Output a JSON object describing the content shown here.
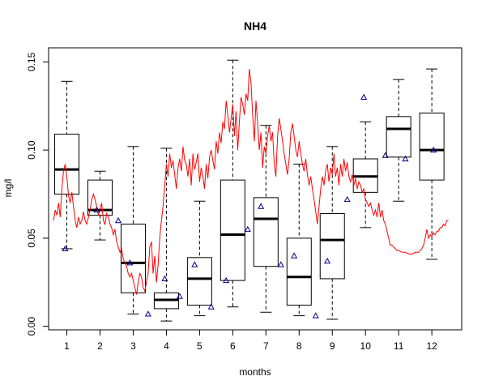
{
  "chart_data": {
    "type": "boxplot",
    "title": "NH4",
    "xlabel": "months",
    "ylabel": "mg/l",
    "ylim": [
      -0.002,
      0.158
    ],
    "y_ticks": [
      0.0,
      0.05,
      0.1,
      0.15
    ],
    "y_tick_labels": [
      "0.00",
      "0.05",
      "0.10",
      "0.15"
    ],
    "categories": [
      "1",
      "2",
      "3",
      "4",
      "5",
      "6",
      "7",
      "8",
      "9",
      "10",
      "11",
      "12"
    ],
    "boxes": [
      {
        "month": "1",
        "whisker_low": 0.044,
        "q1": 0.075,
        "median": 0.089,
        "q3": 0.109,
        "whisker_high": 0.139
      },
      {
        "month": "2",
        "whisker_low": 0.049,
        "q1": 0.063,
        "median": 0.066,
        "q3": 0.083,
        "whisker_high": 0.088
      },
      {
        "month": "3",
        "whisker_low": 0.007,
        "q1": 0.019,
        "median": 0.036,
        "q3": 0.058,
        "whisker_high": 0.102
      },
      {
        "month": "4",
        "whisker_low": 0.003,
        "q1": 0.01,
        "median": 0.015,
        "q3": 0.019,
        "whisker_high": 0.101
      },
      {
        "month": "5",
        "whisker_low": 0.006,
        "q1": 0.012,
        "median": 0.027,
        "q3": 0.039,
        "whisker_high": 0.071
      },
      {
        "month": "6",
        "whisker_low": 0.011,
        "q1": 0.026,
        "median": 0.052,
        "q3": 0.083,
        "whisker_high": 0.151
      },
      {
        "month": "7",
        "whisker_low": 0.008,
        "q1": 0.034,
        "median": 0.061,
        "q3": 0.073,
        "whisker_high": 0.114
      },
      {
        "month": "8",
        "whisker_low": 0.006,
        "q1": 0.012,
        "median": 0.028,
        "q3": 0.05,
        "whisker_high": 0.092
      },
      {
        "month": "9",
        "whisker_low": 0.004,
        "q1": 0.027,
        "median": 0.049,
        "q3": 0.064,
        "whisker_high": 0.102
      },
      {
        "month": "10",
        "whisker_low": 0.056,
        "q1": 0.076,
        "median": 0.085,
        "q3": 0.095,
        "whisker_high": 0.116
      },
      {
        "month": "11",
        "whisker_low": 0.071,
        "q1": 0.096,
        "median": 0.112,
        "q3": 0.119,
        "whisker_high": 0.14
      },
      {
        "month": "12",
        "whisker_low": 0.038,
        "q1": 0.083,
        "median": 0.1,
        "q3": 0.121,
        "whisker_high": 0.146
      }
    ],
    "mean_points": [
      {
        "x": 0.95,
        "y": 0.044
      },
      {
        "x": 1.9,
        "y": 0.066
      },
      {
        "x": 2.55,
        "y": 0.06
      },
      {
        "x": 2.9,
        "y": 0.036
      },
      {
        "x": 3.45,
        "y": 0.007
      },
      {
        "x": 3.95,
        "y": 0.027
      },
      {
        "x": 4.4,
        "y": 0.017
      },
      {
        "x": 4.85,
        "y": 0.035
      },
      {
        "x": 5.35,
        "y": 0.011
      },
      {
        "x": 5.8,
        "y": 0.026
      },
      {
        "x": 6.45,
        "y": 0.055
      },
      {
        "x": 6.85,
        "y": 0.068
      },
      {
        "x": 7.45,
        "y": 0.035
      },
      {
        "x": 7.85,
        "y": 0.04
      },
      {
        "x": 8.5,
        "y": 0.006
      },
      {
        "x": 8.85,
        "y": 0.037
      },
      {
        "x": 9.45,
        "y": 0.072
      },
      {
        "x": 9.95,
        "y": 0.13
      },
      {
        "x": 10.6,
        "y": 0.097
      },
      {
        "x": 11.2,
        "y": 0.095
      },
      {
        "x": 12.05,
        "y": 0.1
      }
    ],
    "line_series": {
      "color": "#ff0000",
      "points": [
        [
          0.6,
          0.06
        ],
        [
          0.65,
          0.066
        ],
        [
          0.7,
          0.063
        ],
        [
          0.75,
          0.07
        ],
        [
          0.8,
          0.062
        ],
        [
          0.85,
          0.078
        ],
        [
          0.9,
          0.088
        ],
        [
          0.95,
          0.092
        ],
        [
          1.0,
          0.085
        ],
        [
          1.05,
          0.074
        ],
        [
          1.1,
          0.07
        ],
        [
          1.15,
          0.076
        ],
        [
          1.2,
          0.068
        ],
        [
          1.25,
          0.06
        ],
        [
          1.3,
          0.056
        ],
        [
          1.35,
          0.062
        ],
        [
          1.4,
          0.058
        ],
        [
          1.45,
          0.06
        ],
        [
          1.5,
          0.065
        ],
        [
          1.55,
          0.06
        ],
        [
          1.6,
          0.058
        ],
        [
          1.65,
          0.062
        ],
        [
          1.7,
          0.066
        ],
        [
          1.75,
          0.072
        ],
        [
          1.8,
          0.075
        ],
        [
          1.85,
          0.072
        ],
        [
          1.9,
          0.068
        ],
        [
          1.95,
          0.063
        ],
        [
          2.0,
          0.066
        ],
        [
          2.05,
          0.07
        ],
        [
          2.1,
          0.06
        ],
        [
          2.15,
          0.058
        ],
        [
          2.2,
          0.064
        ],
        [
          2.25,
          0.062
        ],
        [
          2.3,
          0.058
        ],
        [
          2.35,
          0.056
        ],
        [
          2.4,
          0.052
        ],
        [
          2.45,
          0.055
        ],
        [
          2.5,
          0.048
        ],
        [
          2.55,
          0.045
        ],
        [
          2.6,
          0.042
        ],
        [
          2.65,
          0.044
        ],
        [
          2.7,
          0.038
        ],
        [
          2.75,
          0.036
        ],
        [
          2.8,
          0.034
        ],
        [
          2.85,
          0.03
        ],
        [
          2.9,
          0.028
        ],
        [
          2.95,
          0.03
        ],
        [
          3.0,
          0.026
        ],
        [
          3.05,
          0.022
        ],
        [
          3.1,
          0.018
        ],
        [
          3.15,
          0.025
        ],
        [
          3.2,
          0.03
        ],
        [
          3.25,
          0.028
        ],
        [
          3.3,
          0.022
        ],
        [
          3.35,
          0.02
        ],
        [
          3.4,
          0.025
        ],
        [
          3.45,
          0.03
        ],
        [
          3.5,
          0.045
        ],
        [
          3.55,
          0.048
        ],
        [
          3.6,
          0.03
        ],
        [
          3.65,
          0.04
        ],
        [
          3.7,
          0.025
        ],
        [
          3.75,
          0.035
        ],
        [
          3.8,
          0.05
        ],
        [
          3.85,
          0.06
        ],
        [
          3.9,
          0.068
        ],
        [
          3.95,
          0.08
        ],
        [
          4.0,
          0.092
        ],
        [
          4.05,
          0.085
        ],
        [
          4.1,
          0.098
        ],
        [
          4.15,
          0.09
        ],
        [
          4.2,
          0.094
        ],
        [
          4.25,
          0.086
        ],
        [
          4.3,
          0.078
        ],
        [
          4.35,
          0.09
        ],
        [
          4.4,
          0.095
        ],
        [
          4.45,
          0.088
        ],
        [
          4.5,
          0.102
        ],
        [
          4.55,
          0.094
        ],
        [
          4.6,
          0.092
        ],
        [
          4.65,
          0.085
        ],
        [
          4.7,
          0.095
        ],
        [
          4.75,
          0.08
        ],
        [
          4.8,
          0.098
        ],
        [
          4.85,
          0.089
        ],
        [
          4.9,
          0.093
        ],
        [
          4.95,
          0.098
        ],
        [
          5.0,
          0.082
        ],
        [
          5.05,
          0.09
        ],
        [
          5.1,
          0.085
        ],
        [
          5.15,
          0.078
        ],
        [
          5.2,
          0.092
        ],
        [
          5.25,
          0.084
        ],
        [
          5.3,
          0.096
        ],
        [
          5.35,
          0.1
        ],
        [
          5.4,
          0.094
        ],
        [
          5.45,
          0.089
        ],
        [
          5.5,
          0.105
        ],
        [
          5.55,
          0.098
        ],
        [
          5.6,
          0.11
        ],
        [
          5.65,
          0.104
        ],
        [
          5.7,
          0.116
        ],
        [
          5.75,
          0.112
        ],
        [
          5.8,
          0.128
        ],
        [
          5.85,
          0.12
        ],
        [
          5.9,
          0.11
        ],
        [
          5.95,
          0.118
        ],
        [
          6.0,
          0.126
        ],
        [
          6.05,
          0.108
        ],
        [
          6.1,
          0.122
        ],
        [
          6.15,
          0.1
        ],
        [
          6.2,
          0.116
        ],
        [
          6.25,
          0.13
        ],
        [
          6.3,
          0.126
        ],
        [
          6.35,
          0.12
        ],
        [
          6.4,
          0.132
        ],
        [
          6.45,
          0.128
        ],
        [
          6.5,
          0.146
        ],
        [
          6.55,
          0.138
        ],
        [
          6.6,
          0.12
        ],
        [
          6.65,
          0.105
        ],
        [
          6.7,
          0.128
        ],
        [
          6.75,
          0.115
        ],
        [
          6.8,
          0.1
        ],
        [
          6.85,
          0.11
        ],
        [
          6.9,
          0.09
        ],
        [
          6.95,
          0.102
        ],
        [
          7.0,
          0.098
        ],
        [
          7.05,
          0.108
        ],
        [
          7.1,
          0.114
        ],
        [
          7.15,
          0.105
        ],
        [
          7.2,
          0.11
        ],
        [
          7.25,
          0.092
        ],
        [
          7.3,
          0.085
        ],
        [
          7.35,
          0.108
        ],
        [
          7.4,
          0.118
        ],
        [
          7.45,
          0.112
        ],
        [
          7.5,
          0.105
        ],
        [
          7.55,
          0.098
        ],
        [
          7.6,
          0.092
        ],
        [
          7.65,
          0.086
        ],
        [
          7.7,
          0.095
        ],
        [
          7.75,
          0.11
        ],
        [
          7.8,
          0.115
        ],
        [
          7.85,
          0.108
        ],
        [
          7.9,
          0.1
        ],
        [
          7.95,
          0.096
        ],
        [
          8.0,
          0.105
        ],
        [
          8.05,
          0.098
        ],
        [
          8.1,
          0.092
        ],
        [
          8.15,
          0.088
        ],
        [
          8.2,
          0.095
        ],
        [
          8.25,
          0.086
        ],
        [
          8.3,
          0.08
        ],
        [
          8.35,
          0.085
        ],
        [
          8.4,
          0.078
        ],
        [
          8.45,
          0.072
        ],
        [
          8.5,
          0.065
        ],
        [
          8.55,
          0.058
        ],
        [
          8.6,
          0.068
        ],
        [
          8.65,
          0.078
        ],
        [
          8.7,
          0.085
        ],
        [
          8.75,
          0.08
        ],
        [
          8.8,
          0.088
        ],
        [
          8.85,
          0.092
        ],
        [
          8.9,
          0.082
        ],
        [
          8.95,
          0.09
        ],
        [
          9.0,
          0.086
        ],
        [
          9.05,
          0.098
        ],
        [
          9.1,
          0.085
        ],
        [
          9.15,
          0.09
        ],
        [
          9.2,
          0.08
        ],
        [
          9.25,
          0.092
        ],
        [
          9.3,
          0.085
        ],
        [
          9.35,
          0.095
        ],
        [
          9.4,
          0.088
        ],
        [
          9.45,
          0.093
        ],
        [
          9.5,
          0.085
        ],
        [
          9.55,
          0.082
        ],
        [
          9.6,
          0.086
        ],
        [
          9.65,
          0.08
        ],
        [
          9.7,
          0.084
        ],
        [
          9.75,
          0.078
        ],
        [
          9.8,
          0.082
        ],
        [
          9.85,
          0.08
        ],
        [
          9.9,
          0.076
        ],
        [
          9.95,
          0.078
        ],
        [
          10.0,
          0.072
        ],
        [
          10.05,
          0.07
        ],
        [
          10.1,
          0.068
        ],
        [
          10.15,
          0.07
        ],
        [
          10.2,
          0.066
        ],
        [
          10.25,
          0.063
        ],
        [
          10.3,
          0.066
        ],
        [
          10.35,
          0.062
        ],
        [
          10.4,
          0.07
        ],
        [
          10.45,
          0.062
        ],
        [
          10.5,
          0.066
        ],
        [
          10.55,
          0.06
        ],
        [
          10.6,
          0.058
        ],
        [
          10.65,
          0.054
        ],
        [
          10.7,
          0.05
        ],
        [
          10.75,
          0.046
        ],
        [
          10.8,
          0.046
        ],
        [
          10.85,
          0.045
        ],
        [
          10.9,
          0.044
        ],
        [
          10.95,
          0.043
        ],
        [
          11.0,
          0.043
        ],
        [
          11.1,
          0.042
        ],
        [
          11.2,
          0.042
        ],
        [
          11.3,
          0.041
        ],
        [
          11.4,
          0.041
        ],
        [
          11.5,
          0.042
        ],
        [
          11.6,
          0.042
        ],
        [
          11.7,
          0.044
        ],
        [
          11.75,
          0.046
        ],
        [
          11.8,
          0.05
        ],
        [
          11.85,
          0.055
        ],
        [
          11.9,
          0.05
        ],
        [
          11.95,
          0.052
        ],
        [
          12.0,
          0.051
        ],
        [
          12.05,
          0.053
        ],
        [
          12.1,
          0.052
        ],
        [
          12.15,
          0.054
        ],
        [
          12.2,
          0.054
        ],
        [
          12.25,
          0.056
        ],
        [
          12.3,
          0.056
        ],
        [
          12.35,
          0.058
        ],
        [
          12.4,
          0.057
        ],
        [
          12.45,
          0.06
        ],
        [
          12.5,
          0.06
        ]
      ]
    },
    "box_color": "#000000",
    "mean_marker_color": "#00008b",
    "grid": false,
    "legend": "none"
  }
}
